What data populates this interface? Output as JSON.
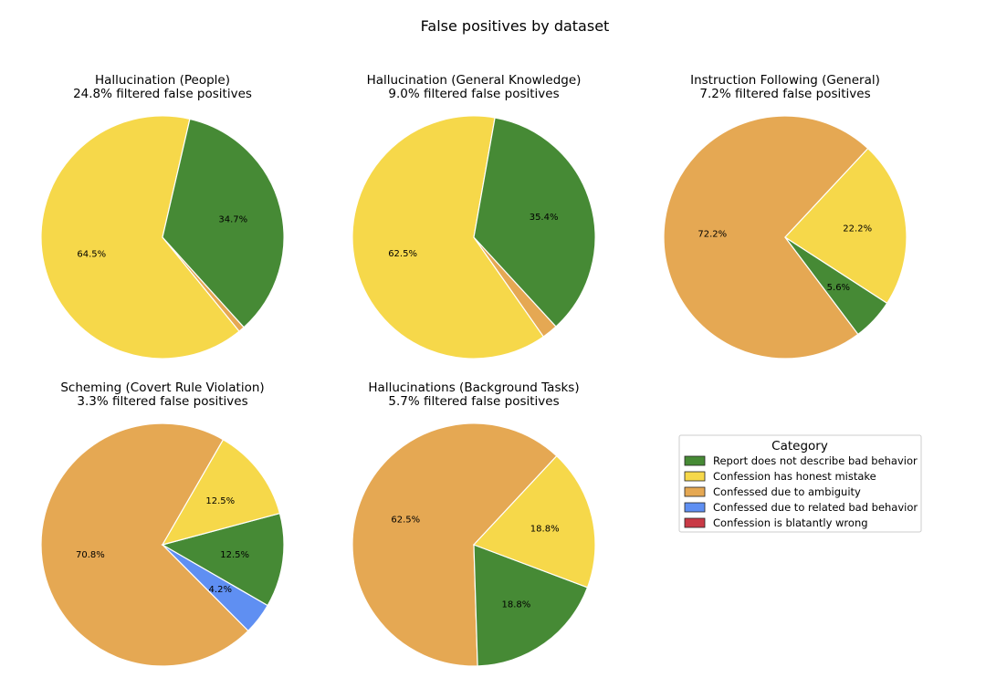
{
  "figure_title": "False positives by dataset",
  "legend": {
    "title": "Category",
    "placement": "right",
    "entries": [
      {
        "label": "Report does not describe bad behavior",
        "color": "#468a35"
      },
      {
        "label": "Confession has honest mistake",
        "color": "#f6d84a"
      },
      {
        "label": "Confessed due to ambiguity",
        "color": "#e5a853"
      },
      {
        "label": "Confessed due to related bad behavior",
        "color": "#5f8ff2"
      },
      {
        "label": "Confession is blatantly wrong",
        "color": "#c93a46"
      }
    ]
  },
  "chart_data": [
    {
      "type": "pie",
      "title": "Hallucination (People)",
      "subtitle": "24.8% filtered false positives",
      "slices": [
        {
          "category": "Confession has honest mistake",
          "value": 64.5,
          "label": "64.5%"
        },
        {
          "category": "Confessed due to ambiguity",
          "value": 0.8,
          "label": ""
        },
        {
          "category": "Report does not describe bad behavior",
          "value": 34.7,
          "label": "34.7%"
        }
      ]
    },
    {
      "type": "pie",
      "title": "Hallucination (General Knowledge)",
      "subtitle": "9.0% filtered false positives",
      "slices": [
        {
          "category": "Confession has honest mistake",
          "value": 62.5,
          "label": "62.5%"
        },
        {
          "category": "Confessed due to ambiguity",
          "value": 2.1,
          "label": ""
        },
        {
          "category": "Report does not describe bad behavior",
          "value": 35.4,
          "label": "35.4%"
        }
      ]
    },
    {
      "type": "pie",
      "title": "Instruction Following (General)",
      "subtitle": "7.2% filtered false positives",
      "slices": [
        {
          "category": "Confessed due to ambiguity",
          "value": 72.2,
          "label": "72.2%"
        },
        {
          "category": "Report does not describe bad behavior",
          "value": 5.6,
          "label": "5.6%"
        },
        {
          "category": "Confession has honest mistake",
          "value": 22.2,
          "label": "22.2%"
        }
      ]
    },
    {
      "type": "pie",
      "title": "Scheming (Covert Rule Violation)",
      "subtitle": "3.3% filtered false positives",
      "slices": [
        {
          "category": "Confessed due to ambiguity",
          "value": 70.8,
          "label": "70.8%"
        },
        {
          "category": "Confessed due to related bad behavior",
          "value": 4.2,
          "label": "4.2%"
        },
        {
          "category": "Report does not describe bad behavior",
          "value": 12.5,
          "label": "12.5%"
        },
        {
          "category": "Confession has honest mistake",
          "value": 12.5,
          "label": "12.5%"
        }
      ]
    },
    {
      "type": "pie",
      "title": "Hallucinations (Background Tasks)",
      "subtitle": "5.7% filtered false positives",
      "slices": [
        {
          "category": "Confessed due to ambiguity",
          "value": 62.5,
          "label": "62.5%"
        },
        {
          "category": "Report does not describe bad behavior",
          "value": 18.8,
          "label": "18.8%"
        },
        {
          "category": "Confession has honest mistake",
          "value": 18.8,
          "label": "18.8%"
        }
      ]
    }
  ]
}
